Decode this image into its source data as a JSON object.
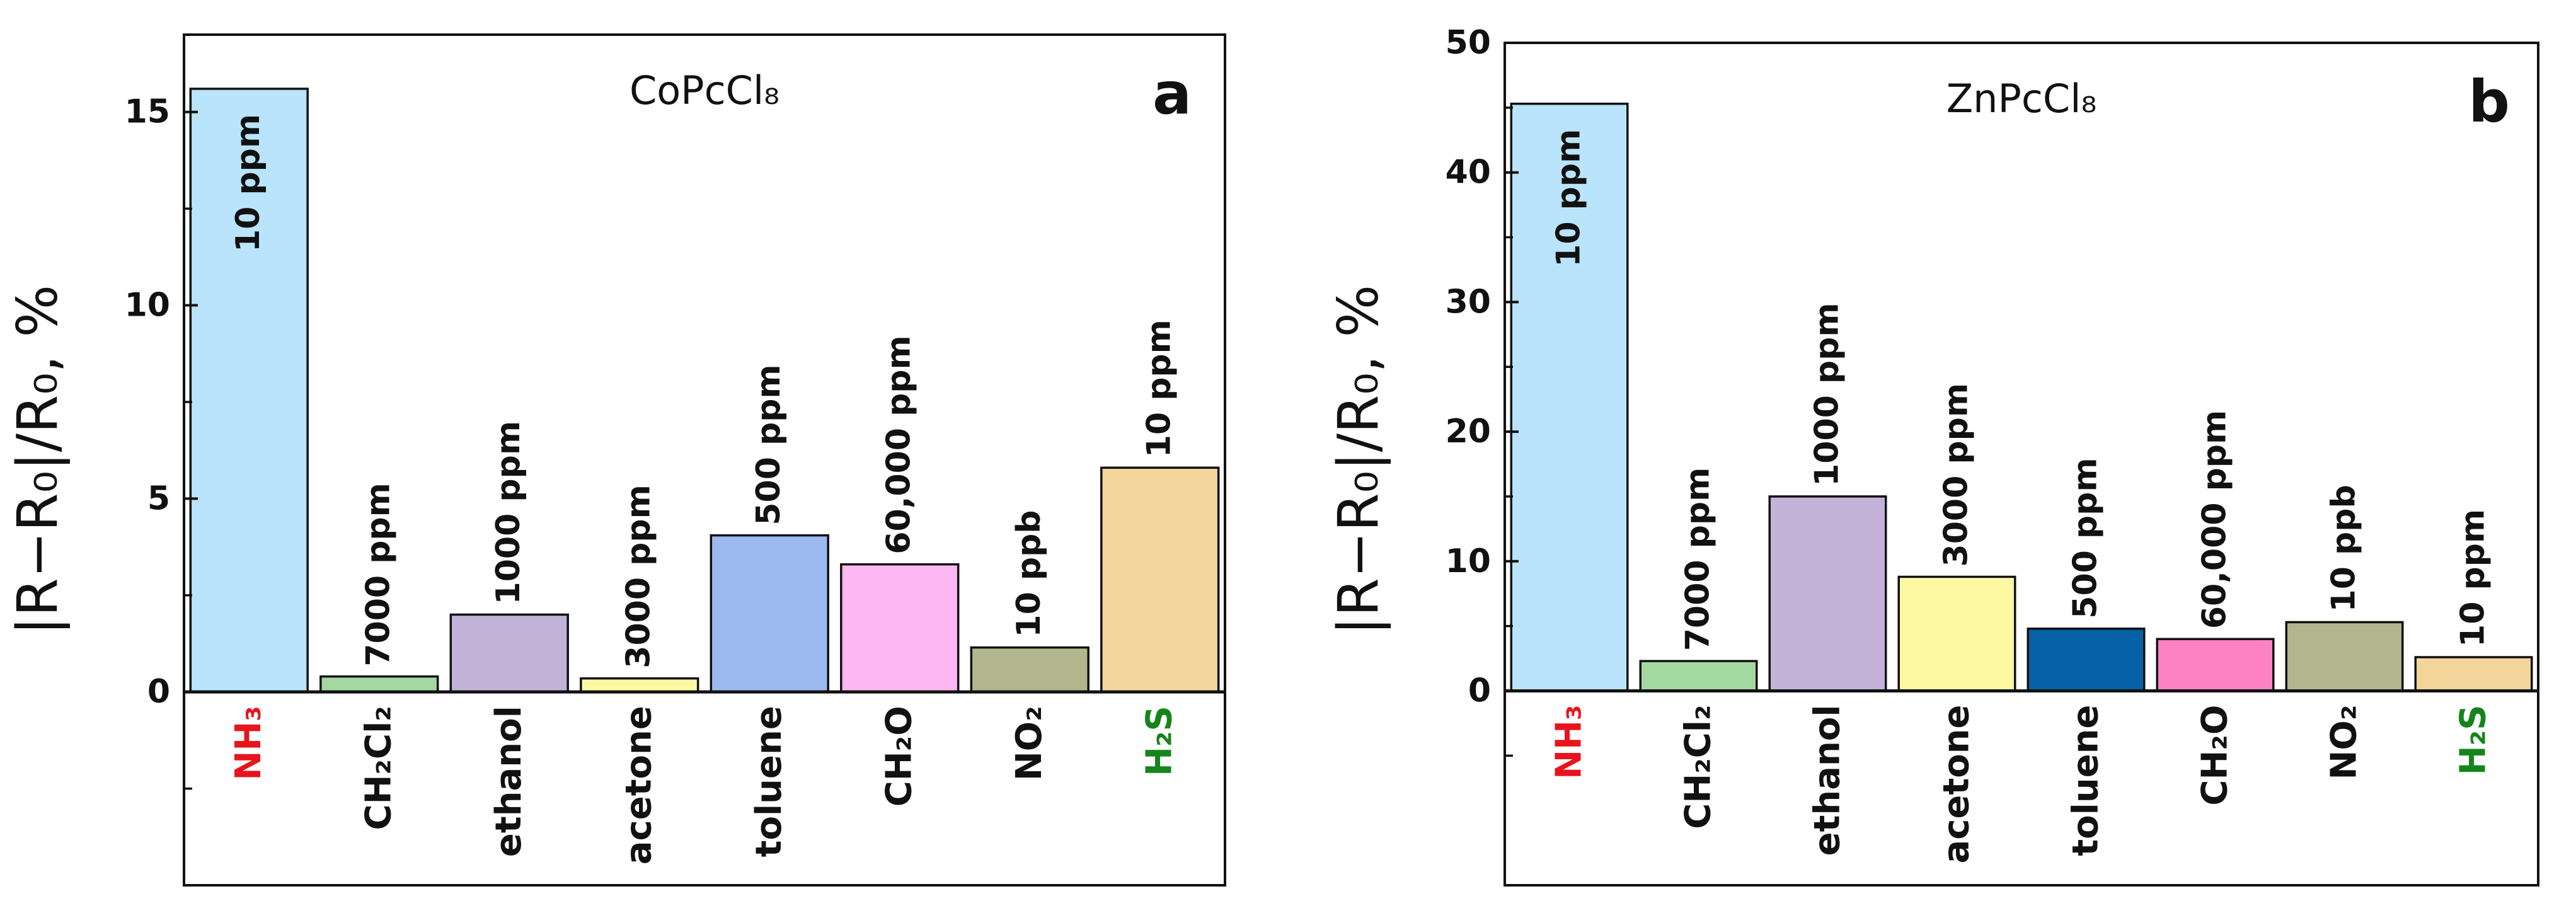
{
  "chart_data": [
    {
      "type": "bar",
      "title": "CoPcCl₈",
      "panel_letter": "a",
      "ylabel": "|R−R₀|/R₀, %",
      "xlabel": "",
      "ylim": [
        -5,
        17
      ],
      "yticks": [
        "0",
        "5",
        "10",
        "15"
      ],
      "ytick_values": [
        0,
        5,
        10,
        15
      ],
      "categories": [
        "NH₃",
        "CH₂Cl₂",
        "ethanol",
        "acetone",
        "toluene",
        "CH₂O",
        "NO₂",
        "H₂S"
      ],
      "category_colors": [
        "#e8141c",
        "#111111",
        "#111111",
        "#111111",
        "#111111",
        "#111111",
        "#111111",
        "#15851b"
      ],
      "values": [
        15.6,
        0.4,
        2.0,
        0.35,
        4.05,
        3.3,
        1.15,
        5.8
      ],
      "bar_colors": [
        "#b9e4fb",
        "#a3d9a0",
        "#c3b2d8",
        "#fdf9a2",
        "#9cb9f0",
        "#fcb8f2",
        "#b1b68c",
        "#f3d59c"
      ],
      "bar_labels": [
        "10 ppm",
        "7000 ppm",
        "1000 ppm",
        "3000 ppm",
        "500 ppm",
        "60,000 ppm",
        "10 ppb",
        "10 ppm"
      ],
      "grid": false
    },
    {
      "type": "bar",
      "title": "ZnPcCl₈",
      "panel_letter": "b",
      "ylabel": "|R−R₀|/R₀, %",
      "xlabel": "",
      "ylim": [
        -15,
        50
      ],
      "yticks": [
        "0",
        "10",
        "20",
        "30",
        "40",
        "50"
      ],
      "ytick_values": [
        0,
        10,
        20,
        30,
        40,
        50
      ],
      "categories": [
        "NH₃",
        "CH₂Cl₂",
        "ethanol",
        "acetone",
        "toluene",
        "CH₂O",
        "NO₂",
        "H₂S"
      ],
      "category_colors": [
        "#e8141c",
        "#111111",
        "#111111",
        "#111111",
        "#111111",
        "#111111",
        "#111111",
        "#15851b"
      ],
      "values": [
        45.3,
        2.3,
        15.0,
        8.8,
        4.8,
        4.0,
        5.3,
        2.6
      ],
      "bar_colors": [
        "#b9e4fb",
        "#a3d9a0",
        "#c3b2d8",
        "#fdf9a2",
        "#0560a6",
        "#fd82c4",
        "#b1b68c",
        "#f3d59c"
      ],
      "bar_labels": [
        "10 ppm",
        "7000 ppm",
        "1000 ppm",
        "3000 ppm",
        "500 ppm",
        "60,000 ppm",
        "10 ppb",
        "10 ppm"
      ],
      "grid": false
    }
  ]
}
